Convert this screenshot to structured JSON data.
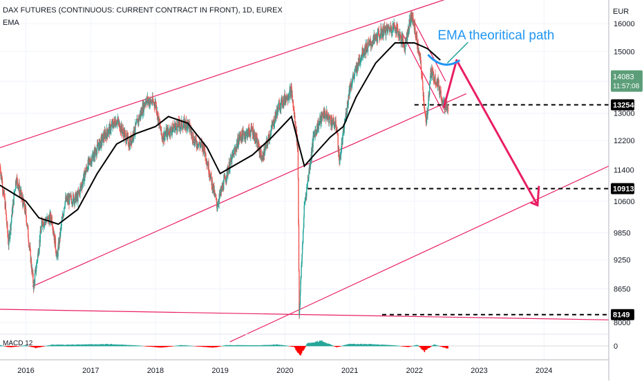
{
  "header": {
    "title": "DAX FUTURES (CONTINUOUS: CURRENT CONTRACT IN FRONT), 1D, EUREX",
    "indicator": "EMA",
    "macd_label": "MACD 12"
  },
  "colors": {
    "up": "#26a69a",
    "down": "#ef5350",
    "ema": "#000000",
    "channel": "#e91e63",
    "arrow": "#e91e63",
    "annotation": "#2196f3",
    "current_price_bg": "#5c9e79",
    "level_bg": "#000000",
    "macd_up": "#26a69a",
    "macd_down": "#ff0000"
  },
  "chart_data": {
    "type": "candlestick",
    "title": "DAX FUTURES (CONTINUOUS: CURRENT CONTRACT IN FRONT), 1D, EUREX",
    "currency_label": "EUR",
    "y_scale": "log",
    "ylim": [
      7800,
      16900
    ],
    "xlim": [
      2015.6,
      2025.0
    ],
    "y_ticks": [
      16000,
      15000,
      14000,
      13000,
      12200,
      11400,
      10600,
      9850,
      9250,
      8650,
      8000
    ],
    "x_ticks": [
      "2016",
      "2017",
      "2018",
      "2019",
      "2020",
      "2021",
      "2022",
      "2023",
      "2024"
    ],
    "price_path": [
      [
        2015.6,
        11500
      ],
      [
        2015.68,
        10500
      ],
      [
        2015.73,
        9600
      ],
      [
        2015.85,
        11200
      ],
      [
        2016.0,
        10300
      ],
      [
        2016.12,
        8700
      ],
      [
        2016.25,
        10100
      ],
      [
        2016.4,
        10200
      ],
      [
        2016.48,
        9300
      ],
      [
        2016.6,
        10600
      ],
      [
        2016.8,
        10700
      ],
      [
        2016.95,
        11500
      ],
      [
        2017.2,
        12300
      ],
      [
        2017.4,
        12800
      ],
      [
        2017.6,
        12100
      ],
      [
        2017.85,
        13400
      ],
      [
        2018.0,
        13300
      ],
      [
        2018.1,
        12300
      ],
      [
        2018.3,
        12600
      ],
      [
        2018.5,
        12700
      ],
      [
        2018.6,
        12200
      ],
      [
        2018.75,
        12000
      ],
      [
        2018.95,
        10500
      ],
      [
        2019.1,
        11300
      ],
      [
        2019.3,
        12300
      ],
      [
        2019.5,
        12500
      ],
      [
        2019.65,
        11700
      ],
      [
        2019.9,
        13200
      ],
      [
        2020.1,
        13700
      ],
      [
        2020.2,
        12000
      ],
      [
        2020.22,
        8150
      ],
      [
        2020.3,
        10500
      ],
      [
        2020.45,
        12400
      ],
      [
        2020.6,
        13000
      ],
      [
        2020.8,
        12600
      ],
      [
        2020.84,
        11600
      ],
      [
        2021.0,
        13800
      ],
      [
        2021.2,
        15000
      ],
      [
        2021.5,
        15700
      ],
      [
        2021.7,
        15900
      ],
      [
        2021.85,
        15200
      ],
      [
        2021.95,
        16300
      ],
      [
        2022.0,
        15900
      ],
      [
        2022.1,
        14500
      ],
      [
        2022.18,
        12600
      ],
      [
        2022.25,
        14300
      ],
      [
        2022.35,
        14000
      ],
      [
        2022.45,
        13300
      ],
      [
        2022.52,
        13100
      ]
    ],
    "series": [
      {
        "name": "EMA",
        "points": [
          [
            2015.6,
            11000
          ],
          [
            2016.0,
            10600
          ],
          [
            2016.2,
            10200
          ],
          [
            2016.5,
            10050
          ],
          [
            2016.8,
            10400
          ],
          [
            2017.1,
            11300
          ],
          [
            2017.4,
            12100
          ],
          [
            2017.7,
            12400
          ],
          [
            2018.0,
            12600
          ],
          [
            2018.2,
            12900
          ],
          [
            2018.5,
            12700
          ],
          [
            2018.8,
            12000
          ],
          [
            2019.0,
            11300
          ],
          [
            2019.2,
            11500
          ],
          [
            2019.5,
            11800
          ],
          [
            2019.8,
            12300
          ],
          [
            2020.1,
            12900
          ],
          [
            2020.3,
            11500
          ],
          [
            2020.45,
            11800
          ],
          [
            2020.7,
            12300
          ],
          [
            2020.9,
            12600
          ],
          [
            2021.1,
            13500
          ],
          [
            2021.4,
            14600
          ],
          [
            2021.7,
            15300
          ],
          [
            2022.0,
            15300
          ],
          [
            2022.2,
            15100
          ],
          [
            2022.4,
            14700
          ]
        ]
      }
    ],
    "current_price": 14083,
    "countdown": "11:57:08",
    "levels": [
      {
        "price": 13254,
        "x_from": 2022.0
      },
      {
        "price": 10913,
        "x_from": 2020.35
      },
      {
        "price": 8149,
        "x_from": 2021.5
      }
    ],
    "channels": [
      {
        "start": [
          2015.6,
          12000
        ],
        "end": [
          2022.8,
          17200
        ]
      },
      {
        "start": [
          2016.1,
          8700
        ],
        "end": [
          2022.8,
          13600
        ]
      },
      {
        "start": [
          2019.15,
          7650
        ],
        "end": [
          2025.0,
          11500
        ]
      },
      {
        "start": [
          2015.6,
          8250
        ],
        "end": [
          2025.0,
          8050
        ]
      },
      {
        "start": [
          2021.95,
          16300
        ],
        "end": [
          2022.48,
          14000
        ]
      },
      {
        "start": [
          2021.8,
          15700
        ],
        "end": [
          2022.45,
          13000
        ]
      }
    ],
    "projection": [
      [
        2022.45,
        13150
      ],
      [
        2022.65,
        14700
      ],
      [
        2023.9,
        10500
      ]
    ],
    "annotation": "EMA theoritical path",
    "macd_profile": [
      [
        2015.6,
        0.3
      ],
      [
        2015.75,
        -0.4
      ],
      [
        2016.0,
        0.2
      ],
      [
        2016.15,
        -0.6
      ],
      [
        2016.4,
        0.4
      ],
      [
        2016.9,
        0.5
      ],
      [
        2017.3,
        0.6
      ],
      [
        2017.7,
        0.2
      ],
      [
        2018.1,
        -0.5
      ],
      [
        2018.4,
        0.3
      ],
      [
        2018.9,
        -0.5
      ],
      [
        2019.1,
        0.3
      ],
      [
        2019.6,
        0.2
      ],
      [
        2019.9,
        0.5
      ],
      [
        2020.15,
        -0.3
      ],
      [
        2020.22,
        -3.5
      ],
      [
        2020.35,
        0.9
      ],
      [
        2020.55,
        1.8
      ],
      [
        2020.8,
        -0.4
      ],
      [
        2021.0,
        0.7
      ],
      [
        2021.3,
        0.6
      ],
      [
        2021.7,
        0.2
      ],
      [
        2021.9,
        -0.3
      ],
      [
        2022.05,
        0.4
      ],
      [
        2022.15,
        -1.8
      ],
      [
        2022.3,
        0.5
      ],
      [
        2022.5,
        -0.7
      ]
    ]
  }
}
